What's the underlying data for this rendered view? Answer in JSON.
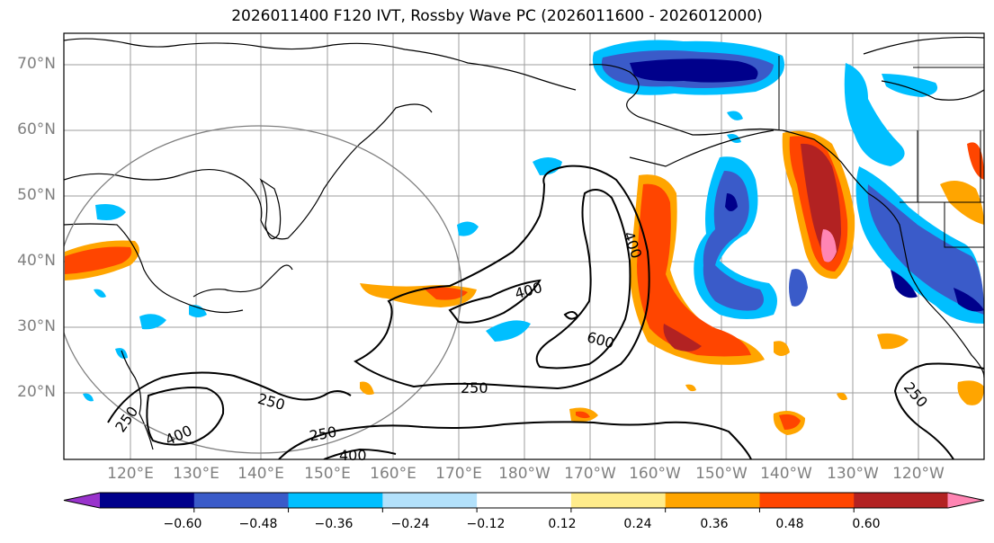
{
  "title": "2026011400 F120 IVT, Rossby Wave PC (2026011600 - 2026012000)",
  "lat_labels": [
    "70°N",
    "60°N",
    "50°N",
    "40°N",
    "30°N",
    "20°N"
  ],
  "lon_labels": [
    "120°E",
    "130°E",
    "140°E",
    "150°E",
    "160°E",
    "170°E",
    "180°W",
    "170°W",
    "160°W",
    "150°W",
    "140°W",
    "130°W",
    "120°W"
  ],
  "colorbar": {
    "colors": [
      "#9933cc",
      "#00008b",
      "#3a5bc9",
      "#00bfff",
      "#b3e1fb",
      "#ffffff",
      "#ffec8b",
      "#ffa500",
      "#ff4500",
      "#b22222",
      "#ff85b3"
    ],
    "ticks": [
      "−0.60",
      "−0.48",
      "−0.36",
      "−0.24",
      "−0.12",
      "0.12",
      "0.24",
      "0.36",
      "0.48",
      "0.60"
    ]
  },
  "contour_labels": [
    {
      "text": "400"
    },
    {
      "text": "400"
    },
    {
      "text": "600"
    },
    {
      "text": "250"
    },
    {
      "text": "250"
    },
    {
      "text": "250"
    },
    {
      "text": "250"
    },
    {
      "text": "400"
    },
    {
      "text": "400"
    },
    {
      "text": "250"
    }
  ]
}
